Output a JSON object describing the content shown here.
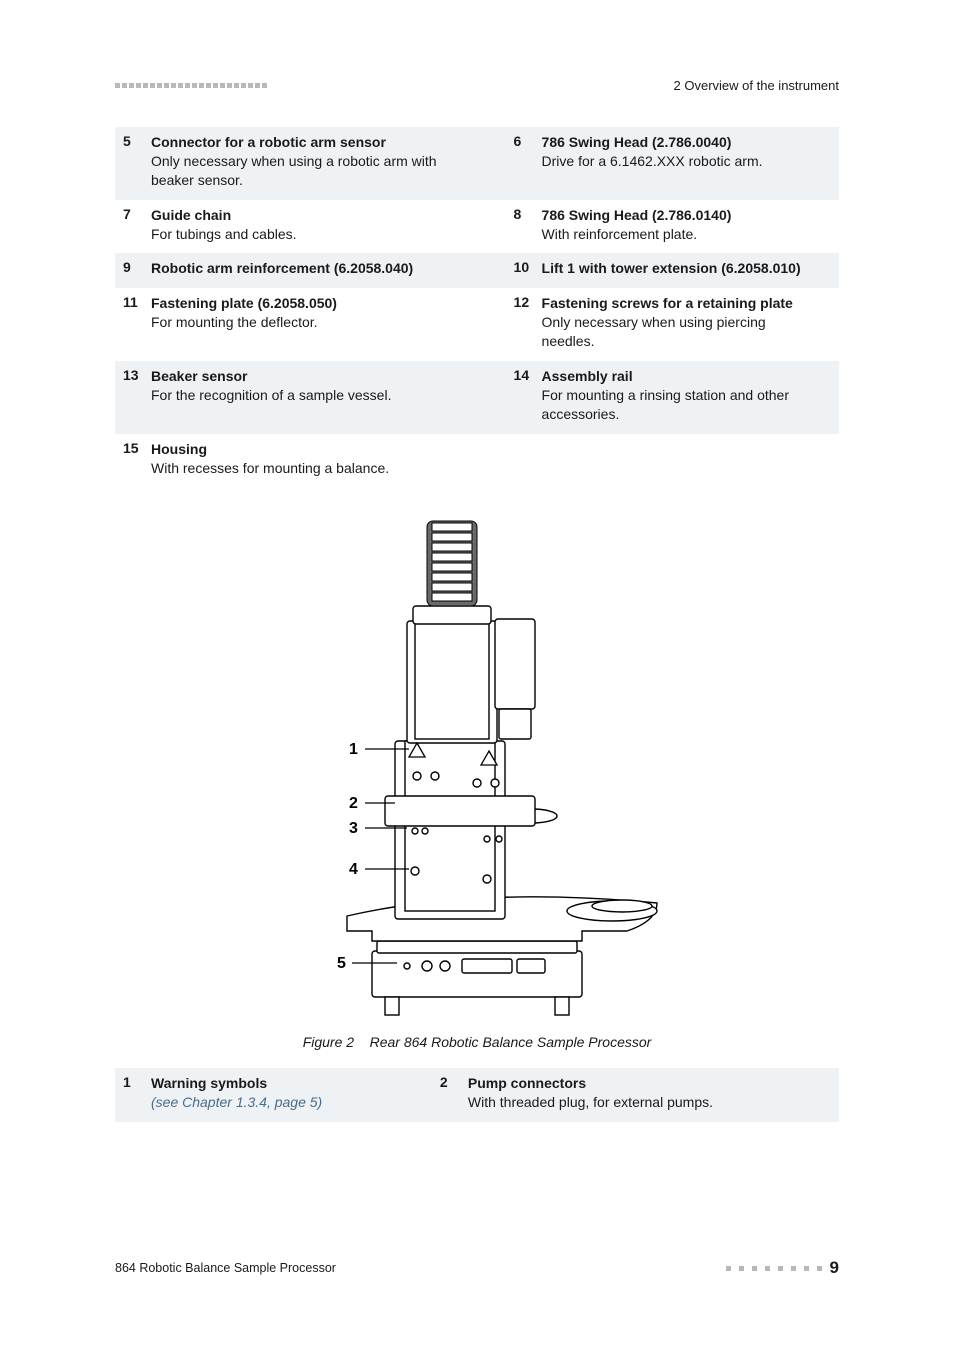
{
  "header": {
    "section": "2 Overview of the instrument"
  },
  "legend_rows": [
    {
      "left": {
        "n": "5",
        "title": "Connector for a robotic arm sensor",
        "desc": "Only necessary when using a robotic arm with beaker sensor."
      },
      "right": {
        "n": "6",
        "title": "786 Swing Head (2.786.0040)",
        "desc": "Drive for a 6.1462.XXX robotic arm."
      }
    },
    {
      "left": {
        "n": "7",
        "title": "Guide chain",
        "desc": "For tubings and cables."
      },
      "right": {
        "n": "8",
        "title": "786 Swing Head (2.786.0140)",
        "desc": "With reinforcement plate."
      }
    },
    {
      "left": {
        "n": "9",
        "title": "Robotic arm reinforcement (6.2058.040)",
        "desc": ""
      },
      "right": {
        "n": "10",
        "title": "Lift 1 with tower extension (6.2058.010)",
        "desc": ""
      }
    },
    {
      "left": {
        "n": "11",
        "title": "Fastening plate (6.2058.050)",
        "desc": "For mounting the deflector."
      },
      "right": {
        "n": "12",
        "title": "Fastening screws for a retaining plate",
        "desc": "Only necessary when using piercing needles."
      }
    },
    {
      "left": {
        "n": "13",
        "title": "Beaker sensor",
        "desc": "For the recognition of a sample vessel."
      },
      "right": {
        "n": "14",
        "title": "Assembly rail",
        "desc": "For mounting a rinsing station and other accessories."
      }
    },
    {
      "left": {
        "n": "15",
        "title": "Housing",
        "desc": "With recesses for mounting a balance."
      },
      "right": null
    }
  ],
  "figure": {
    "label": "Figure 2",
    "caption": "Rear 864 Robotic Balance Sample Processor",
    "callouts": [
      "1",
      "2",
      "3",
      "4",
      "5"
    ],
    "stroke": "#000000",
    "fill": "#ffffff",
    "chain_fill": "#6a6a6a"
  },
  "legend2_rows": [
    {
      "left": {
        "n": "1",
        "title": "Warning symbols",
        "ref": "(see Chapter 1.3.4, page 5)"
      },
      "right": {
        "n": "2",
        "title": "Pump connectors",
        "desc": "With threaded plug, for external pumps."
      }
    }
  ],
  "footer": {
    "product": "864 Robotic Balance Sample Processor",
    "page": "9"
  }
}
